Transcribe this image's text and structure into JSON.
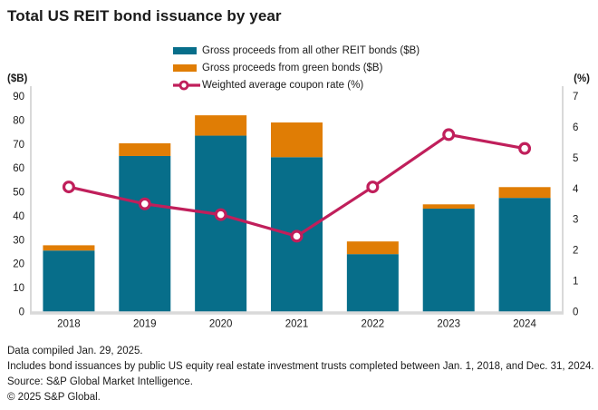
{
  "title": "Total US REIT bond issuance by year",
  "legend": {
    "items": [
      {
        "label": "Gross proceeds from all other REIT bonds ($B)",
        "marker": "bar-swatch"
      },
      {
        "label": "Gross proceeds from green bonds ($B)",
        "marker": "bar-swatch"
      },
      {
        "label": "Weighted average coupon rate (%)",
        "marker": "line-with-circle"
      }
    ]
  },
  "left_axis": {
    "label": "($B)",
    "ticks": [
      90,
      80,
      70,
      60,
      50,
      40,
      30,
      20,
      10,
      0
    ],
    "min": 0,
    "max": 90
  },
  "right_axis": {
    "label": "(%)",
    "ticks": [
      7,
      6,
      5,
      4,
      3,
      2,
      1,
      0
    ],
    "min": 0,
    "max": 7
  },
  "colors": {
    "teal_bar": "#076e8a",
    "orange_bar": "#e07d05",
    "coupon_line": "#c01f5b",
    "axis_gray": "#d9d9d9",
    "text": "#1a1a1a"
  },
  "chart_data": {
    "type": "bar",
    "subtype": "stacked-bars-with-line-overlay",
    "categories": [
      "2018",
      "2019",
      "2020",
      "2021",
      "2022",
      "2023",
      "2024"
    ],
    "series": [
      {
        "name": "Gross proceeds from all other REIT bonds ($B)",
        "type": "bar",
        "axis": "left",
        "color": "#076e8a",
        "values": [
          25.5,
          65.0,
          73.5,
          64.5,
          24.0,
          43.0,
          47.5
        ]
      },
      {
        "name": "Gross proceeds from green bonds ($B)",
        "type": "bar",
        "axis": "left",
        "color": "#e07d05",
        "values": [
          2.2,
          5.3,
          8.5,
          14.5,
          5.3,
          1.8,
          4.5
        ]
      },
      {
        "name": "Weighted average coupon rate (%)",
        "type": "line",
        "axis": "right",
        "color": "#c01f5b",
        "values": [
          4.05,
          3.5,
          3.15,
          2.45,
          4.05,
          5.75,
          5.3
        ]
      }
    ],
    "stacked": true,
    "ylim_left": [
      0,
      90
    ],
    "ylim_right": [
      0,
      7
    ],
    "grid": false,
    "legend_position": "top"
  },
  "footnotes": [
    "Data compiled Jan. 29, 2025.",
    "Includes bond issuances by public US equity real estate investment trusts completed between Jan. 1, 2018, and Dec. 31, 2024.",
    "Source: S&P Global Market Intelligence.",
    "© 2025 S&P Global."
  ]
}
